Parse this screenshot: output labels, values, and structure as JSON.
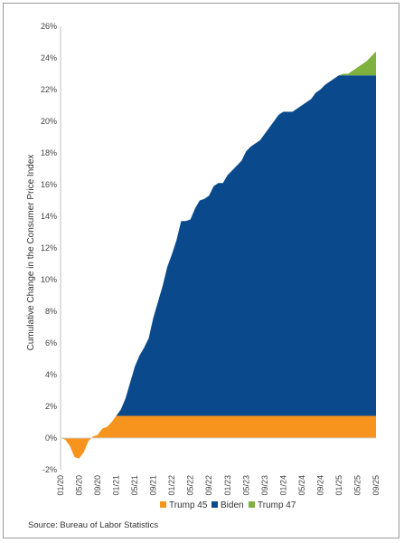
{
  "source": "Source: Bureau of Labor Statistics",
  "chart_data": {
    "type": "area",
    "ylabel": "Cumulative Change in the Consumer Price Index",
    "xlabel": "",
    "ylim": [
      -2,
      26
    ],
    "y_ticks": [
      "-2%",
      "0%",
      "2%",
      "4%",
      "6%",
      "8%",
      "10%",
      "12%",
      "14%",
      "16%",
      "18%",
      "20%",
      "22%",
      "24%",
      "26%"
    ],
    "x_ticks": [
      "01/20",
      "05/20",
      "09/20",
      "01/21",
      "05/21",
      "09/21",
      "01/22",
      "05/22",
      "09/22",
      "01/23",
      "05/23",
      "09/23",
      "01/24",
      "05/24",
      "09/24",
      "01/25",
      "05/25",
      "09/25"
    ],
    "grid": false,
    "legend_position": "bottom",
    "series": [
      {
        "name": "Trump 45",
        "color": "#f7941d"
      },
      {
        "name": "Biden",
        "color": "#0a4a8c"
      },
      {
        "name": "Trump 47",
        "color": "#7fb13f"
      }
    ],
    "segments": {
      "trump45": {
        "x": [
          "01/20",
          "02/20",
          "03/20",
          "04/20",
          "05/20",
          "06/20",
          "07/20",
          "08/20",
          "09/20",
          "10/20",
          "11/20",
          "12/20",
          "01/21"
        ],
        "values": [
          0.0,
          -0.1,
          -0.5,
          -1.2,
          -1.3,
          -0.9,
          -0.2,
          0.1,
          0.2,
          0.6,
          0.7,
          1.0,
          1.4
        ]
      },
      "biden": {
        "x": [
          "01/21",
          "02/21",
          "03/21",
          "04/21",
          "05/21",
          "06/21",
          "07/21",
          "08/21",
          "09/21",
          "10/21",
          "11/21",
          "12/21",
          "01/22",
          "02/22",
          "03/22",
          "04/22",
          "05/22",
          "06/22",
          "07/22",
          "08/22",
          "09/22",
          "10/22",
          "11/22",
          "12/22",
          "01/23",
          "02/23",
          "03/23",
          "04/23",
          "05/23",
          "06/23",
          "07/23",
          "08/23",
          "09/23",
          "10/23",
          "11/23",
          "12/23",
          "01/24",
          "02/24",
          "03/24",
          "04/24",
          "05/24",
          "06/24",
          "07/24",
          "08/24",
          "09/24",
          "10/24",
          "11/24",
          "12/24",
          "01/25"
        ],
        "values": [
          1.4,
          1.8,
          2.5,
          3.5,
          4.5,
          5.2,
          5.7,
          6.3,
          7.6,
          8.6,
          9.6,
          10.8,
          11.6,
          12.5,
          13.7,
          13.7,
          13.8,
          14.5,
          15.0,
          15.1,
          15.3,
          15.9,
          16.1,
          16.1,
          16.6,
          16.9,
          17.2,
          17.5,
          18.1,
          18.4,
          18.6,
          18.8,
          19.2,
          19.6,
          20.0,
          20.4,
          20.6,
          20.6,
          20.6,
          20.8,
          21.0,
          21.2,
          21.4,
          21.8,
          22.0,
          22.3,
          22.5,
          22.7,
          22.9
        ]
      },
      "trump47": {
        "x": [
          "01/25",
          "02/25",
          "03/25",
          "04/25",
          "05/25",
          "06/25",
          "07/25",
          "08/25",
          "09/25"
        ],
        "values": [
          22.9,
          23.0,
          23.0,
          23.2,
          23.4,
          23.6,
          23.8,
          24.1,
          24.4
        ]
      }
    },
    "baselines": {
      "biden_start": 1.4,
      "trump47_start": 22.9
    }
  }
}
